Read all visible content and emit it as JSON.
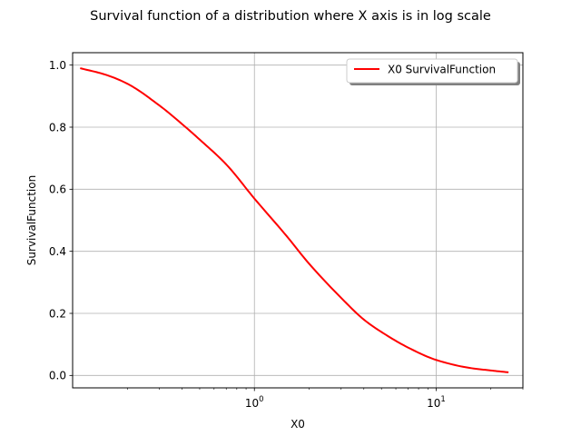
{
  "chart_data": {
    "type": "line",
    "title": "Survival function of a distribution where X axis is in log scale",
    "xlabel": "X0",
    "ylabel": "SurvivalFunction",
    "xscale": "log",
    "xlim": [
      0.1,
      30
    ],
    "ylim": [
      -0.04,
      1.04
    ],
    "grid": true,
    "legend_position": "top-right",
    "x_ticks": [
      {
        "base": "10",
        "exp": "0",
        "value": 1
      },
      {
        "base": "10",
        "exp": "1",
        "value": 10
      }
    ],
    "y_ticks": [
      {
        "label": "0.0",
        "value": 0.0
      },
      {
        "label": "0.2",
        "value": 0.2
      },
      {
        "label": "0.4",
        "value": 0.4
      },
      {
        "label": "0.6",
        "value": 0.6
      },
      {
        "label": "0.8",
        "value": 0.8
      },
      {
        "label": "1.0",
        "value": 1.0
      }
    ],
    "series": [
      {
        "name": "X0 SurvivalFunction",
        "color": "#ff0000",
        "x": [
          0.11,
          0.15,
          0.2,
          0.3,
          0.4,
          0.5,
          0.7,
          1.0,
          1.5,
          2.0,
          3.0,
          4.0,
          5.0,
          7.0,
          10.0,
          15.0,
          20.0,
          25.0
        ],
        "y": [
          0.99,
          0.97,
          0.94,
          0.87,
          0.81,
          0.76,
          0.68,
          0.57,
          0.45,
          0.36,
          0.25,
          0.18,
          0.14,
          0.09,
          0.05,
          0.025,
          0.016,
          0.01
        ]
      }
    ]
  }
}
